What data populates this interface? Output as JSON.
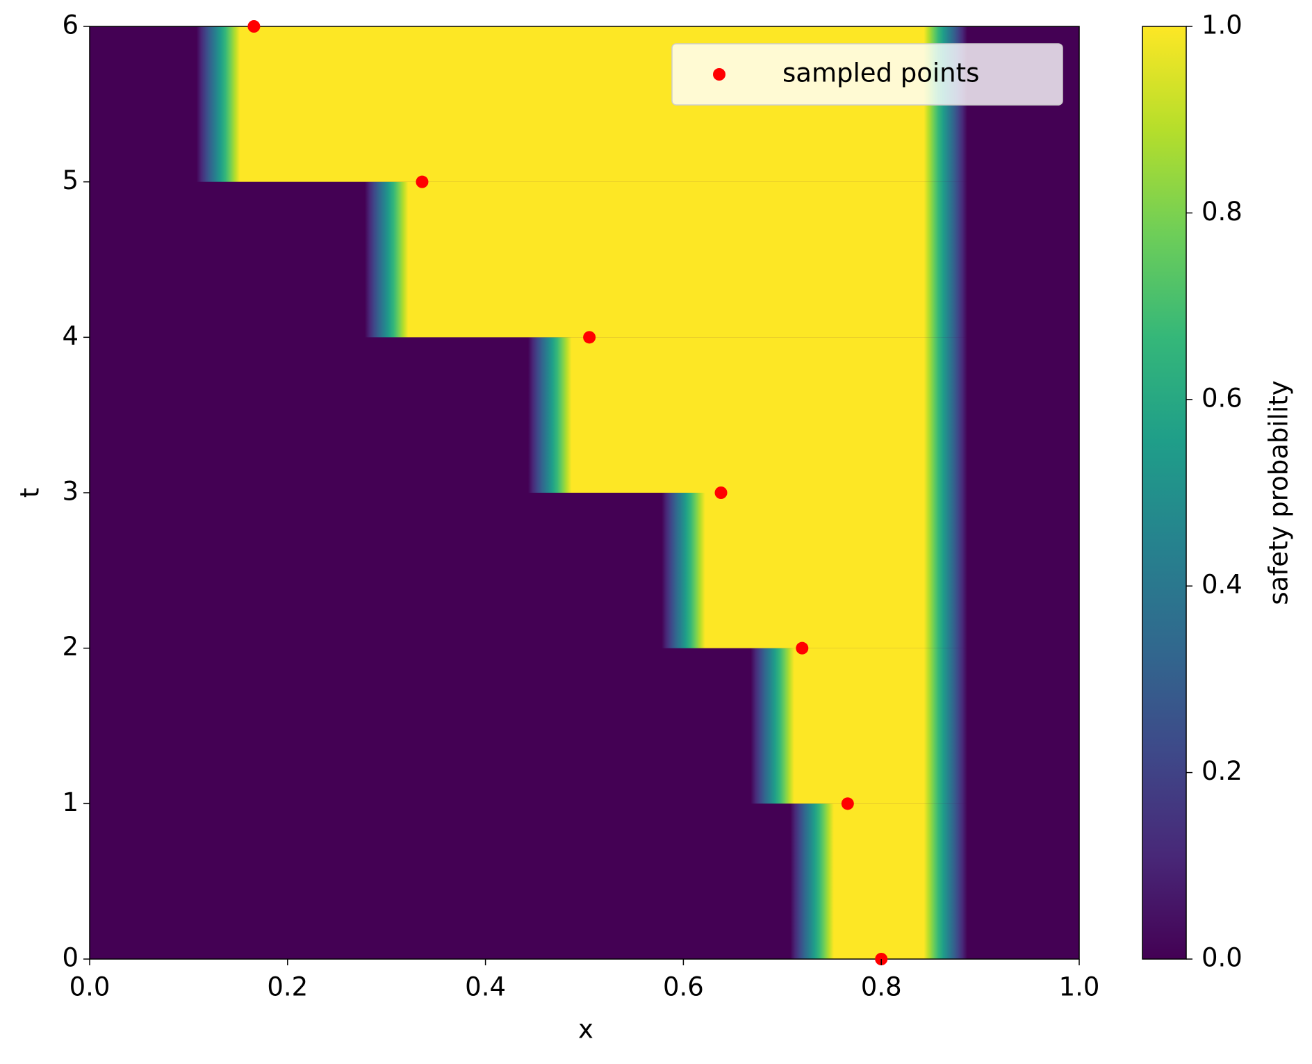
{
  "chart_data": {
    "type": "heatmap-scatter",
    "x_label": "x",
    "y_label": "t",
    "xlim": [
      0,
      1
    ],
    "ylim": [
      0,
      6
    ],
    "xticks": [
      {
        "value": 0,
        "label": "0.0"
      },
      0.2,
      0.4,
      0.6,
      0.8,
      {
        "value": 1,
        "label": "1.0"
      }
    ],
    "yticks": [
      0,
      1,
      2,
      3,
      4,
      5,
      6
    ],
    "safe_regions": [
      {
        "t": [
          0,
          1
        ],
        "x": [
          0.73,
          0.865
        ]
      },
      {
        "t": [
          1,
          2
        ],
        "x": [
          0.69,
          0.865
        ]
      },
      {
        "t": [
          2,
          3
        ],
        "x": [
          0.6,
          0.865
        ]
      },
      {
        "t": [
          3,
          4
        ],
        "x": [
          0.465,
          0.865
        ]
      },
      {
        "t": [
          4,
          5
        ],
        "x": [
          0.3,
          0.865
        ]
      },
      {
        "t": [
          5,
          6
        ],
        "x": [
          0.13,
          0.865
        ]
      }
    ],
    "series": [
      {
        "name": "sampled points",
        "color": "#ff0000",
        "x": [
          0.166,
          0.336,
          0.505,
          0.638,
          0.72,
          0.766,
          0.8
        ],
        "values": [
          6,
          5,
          4,
          3,
          2,
          1,
          0
        ]
      }
    ],
    "legend": "upper right",
    "colorbar": {
      "label": "safety probability",
      "lim": [
        0,
        1
      ],
      "ticks": [
        {
          "value": 0,
          "label": "0.0"
        },
        0.2,
        0.4,
        0.6,
        0.8,
        {
          "value": 1,
          "label": "1.0"
        }
      ],
      "colormap": [
        "#440154",
        "#482878",
        "#3e4989",
        "#31688e",
        "#26828e",
        "#1f9e89",
        "#35b779",
        "#6ece58",
        "#b5de2b",
        "#fde725"
      ]
    }
  }
}
